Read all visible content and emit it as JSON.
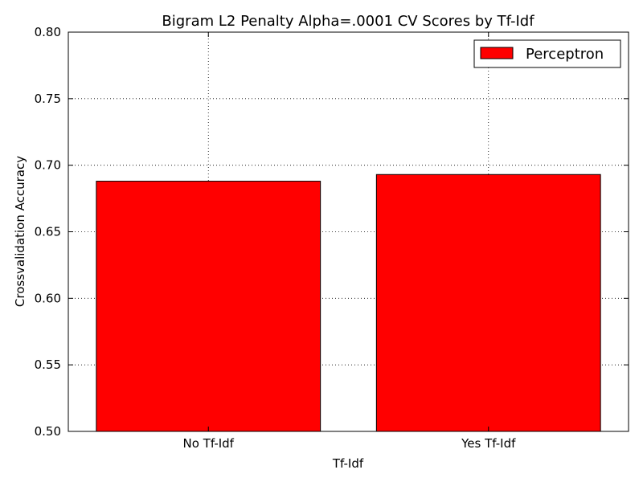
{
  "chart_data": {
    "type": "bar",
    "title": "Bigram L2 Penalty Alpha=.0001 CV Scores by Tf-Idf",
    "xlabel": "Tf-Idf",
    "ylabel": "Crossvalidation Accuracy",
    "categories": [
      "No Tf-Idf",
      "Yes Tf-Idf"
    ],
    "series": [
      {
        "name": "Perceptron",
        "values": [
          0.688,
          0.693
        ],
        "color": "#ff0000"
      }
    ],
    "ylim": [
      0.5,
      0.8
    ],
    "yticks": [
      "0.50",
      "0.55",
      "0.60",
      "0.65",
      "0.70",
      "0.75",
      "0.80"
    ],
    "grid": true,
    "legend_position": "top-right"
  }
}
